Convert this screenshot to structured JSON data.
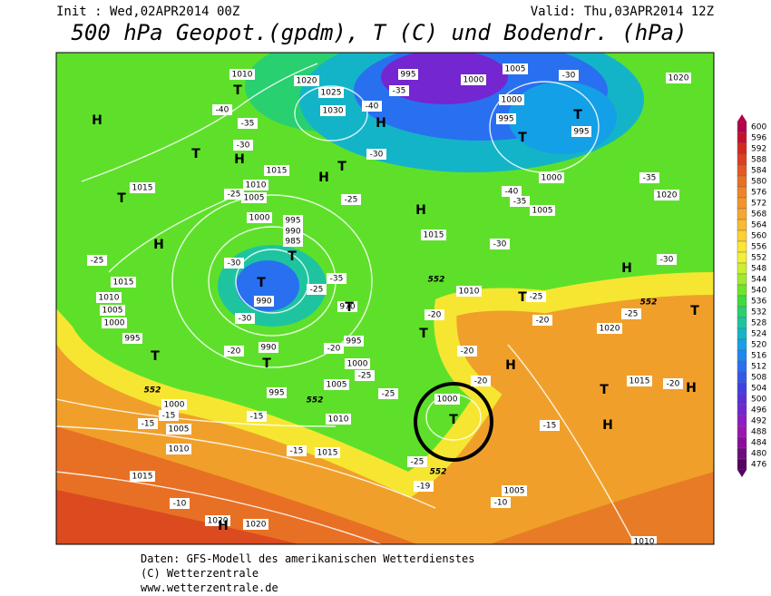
{
  "header": {
    "init": "Init : Wed,02APR2014 00Z",
    "valid": "Valid: Thu,03APR2014 12Z",
    "title": "500 hPa Geopot.(gpdm), T (C) und Bodendr. (hPa)"
  },
  "legend": {
    "values": [
      600,
      596,
      592,
      588,
      584,
      580,
      576,
      572,
      568,
      564,
      560,
      556,
      552,
      548,
      544,
      540,
      536,
      532,
      528,
      524,
      520,
      516,
      512,
      508,
      504,
      500,
      496,
      492,
      488,
      484,
      480,
      476
    ],
    "colors": [
      "#b4004b",
      "#c8102d",
      "#d22a1e",
      "#dc4020",
      "#e25a22",
      "#e87024",
      "#ee8428",
      "#f2962a",
      "#f6a82c",
      "#f8ba2e",
      "#fcd030",
      "#fce632",
      "#f4f034",
      "#ccf030",
      "#a0ec2c",
      "#6ee628",
      "#3cdc3c",
      "#28d070",
      "#1ec4a0",
      "#14b4c8",
      "#14a0e6",
      "#1e88f0",
      "#2870f0",
      "#3458ea",
      "#4040e0",
      "#5a30d8",
      "#7426d0",
      "#8c1cc4",
      "#9c14b4",
      "#8c0c9c",
      "#700880",
      "#540460"
    ]
  },
  "map": {
    "pressure_labels": [
      "1010",
      "1020",
      "1025",
      "1030",
      "995",
      "1005",
      "1000",
      "1000",
      "995",
      "995",
      "1000",
      "1005",
      "1020",
      "1020",
      "1015",
      "1010",
      "1005",
      "1000",
      "995",
      "990",
      "985",
      "1015",
      "1015",
      "1010",
      "1005",
      "1000",
      "995",
      "990",
      "990",
      "970",
      "995",
      "1000",
      "1005",
      "995",
      "1010",
      "1000",
      "1005",
      "1010",
      "1015",
      "1015",
      "1020",
      "1020",
      "1015",
      "1010",
      "1020",
      "1015",
      "1000",
      "1005",
      "1010"
    ],
    "temperature_labels": [
      "-40",
      "-35",
      "-30",
      "-25",
      "-30",
      "-25",
      "-35",
      "-25",
      "-30",
      "-20",
      "-20",
      "-25",
      "-25",
      "-15",
      "-15",
      "-15",
      "-15",
      "-10",
      "-40",
      "-35",
      "-30",
      "-25",
      "-30",
      "-35",
      "-40",
      "-35",
      "-30",
      "-30",
      "-25",
      "-20",
      "-25",
      "-20",
      "-20",
      "-20",
      "-20",
      "-15",
      "-25",
      "-19",
      "-10"
    ],
    "centers": [
      "H",
      "H",
      "H",
      "H",
      "H",
      "H",
      "H",
      "H",
      "H",
      "H",
      "H",
      "T",
      "T",
      "T",
      "T",
      "T",
      "T",
      "T",
      "T",
      "T",
      "T",
      "T",
      "T",
      "T",
      "T",
      "T",
      "T"
    ],
    "height_labels": [
      "552",
      "552",
      "552",
      "552",
      "552"
    ]
  },
  "footer": {
    "line1": "Daten: GFS-Modell des amerikanischen Wetterdienstes",
    "line2": "(C) Wetterzentrale",
    "line3": "www.wetterzentrale.de"
  }
}
